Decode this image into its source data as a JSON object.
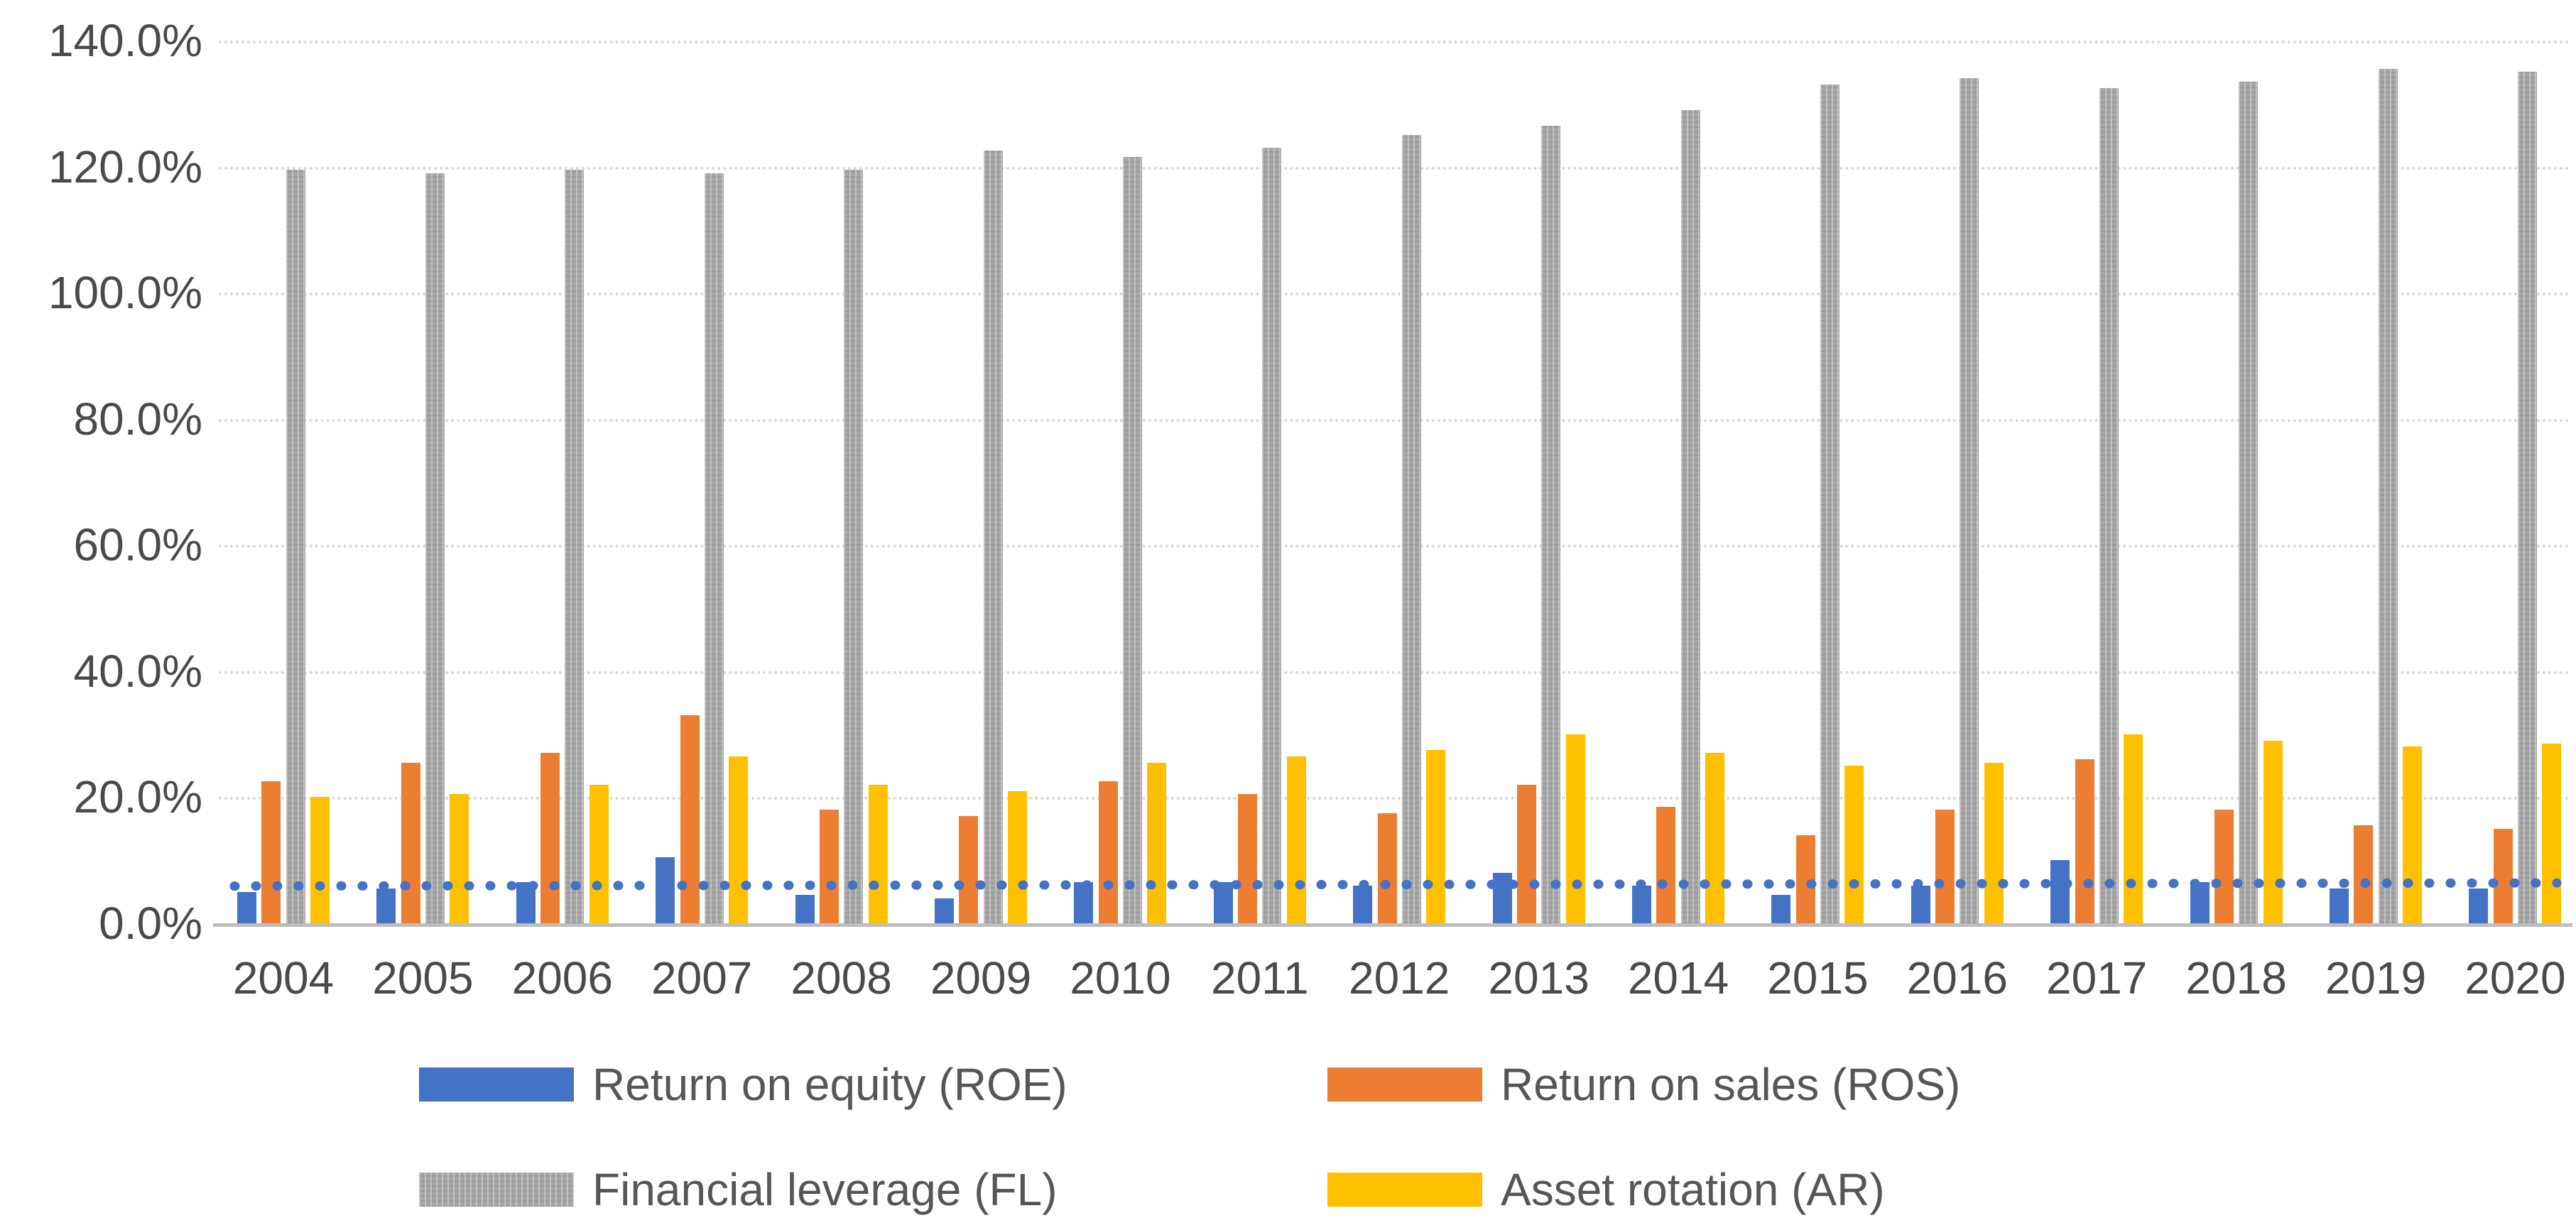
{
  "chart_data": {
    "type": "bar",
    "title": "",
    "categories": [
      "2004",
      "2005",
      "2006",
      "2007",
      "2008",
      "2009",
      "2010",
      "2011",
      "2012",
      "2013",
      "2014",
      "2015",
      "2016",
      "2017",
      "2018",
      "2019",
      "2020"
    ],
    "series": [
      {
        "key": "roe",
        "name": "Return on equity (ROE)",
        "color": "#4472C4",
        "pattern": false,
        "values": [
          5.0,
          5.5,
          6.5,
          10.5,
          4.5,
          4.0,
          6.5,
          6.5,
          6.0,
          8.0,
          6.0,
          4.5,
          6.0,
          10.0,
          6.5,
          5.5,
          5.5
        ]
      },
      {
        "key": "ros",
        "name": "Return on sales (ROS)",
        "color": "#ED7D31",
        "pattern": false,
        "values": [
          22.5,
          25.5,
          27.0,
          33.0,
          18.0,
          17.0,
          22.5,
          20.5,
          17.5,
          22.0,
          18.5,
          14.0,
          18.0,
          26.0,
          18.0,
          15.5,
          15.0
        ]
      },
      {
        "key": "fl",
        "name": "Financial leverage (FL)",
        "color": "#A6A6A6",
        "pattern": true,
        "values": [
          119.5,
          119.0,
          119.5,
          119.0,
          119.5,
          122.5,
          121.5,
          123.0,
          125.0,
          126.5,
          129.0,
          133.0,
          134.0,
          132.5,
          133.5,
          135.5,
          135.0
        ]
      },
      {
        "key": "ar",
        "name": "Asset rotation (AR)",
        "color": "#FFC000",
        "pattern": false,
        "values": [
          20.0,
          20.5,
          22.0,
          26.5,
          22.0,
          21.0,
          25.5,
          26.5,
          27.5,
          30.0,
          27.0,
          25.0,
          25.5,
          30.0,
          29.0,
          28.0,
          28.5
        ]
      }
    ],
    "unit": "%",
    "y_tick_labels": [
      "0.0%",
      "20.0%",
      "40.0%",
      "60.0%",
      "80.0%",
      "100.0%",
      "120.0%",
      "140.0%"
    ],
    "y_tick_step": 20,
    "ylim": [
      0,
      140
    ],
    "xlabel": "",
    "ylabel": "",
    "grid": "horizontal-dotted",
    "legend_position": "bottom",
    "trendline": {
      "series": "roe",
      "style": "dotted",
      "color": "#4472C4",
      "start_value": 5.9,
      "end_value": 6.4
    }
  },
  "legend": {
    "items": [
      {
        "label": "Return on equity (ROE)"
      },
      {
        "label": "Return on sales (ROS)"
      },
      {
        "label": "Financial leverage (FL)"
      },
      {
        "label": "Asset rotation (AR)"
      }
    ]
  }
}
